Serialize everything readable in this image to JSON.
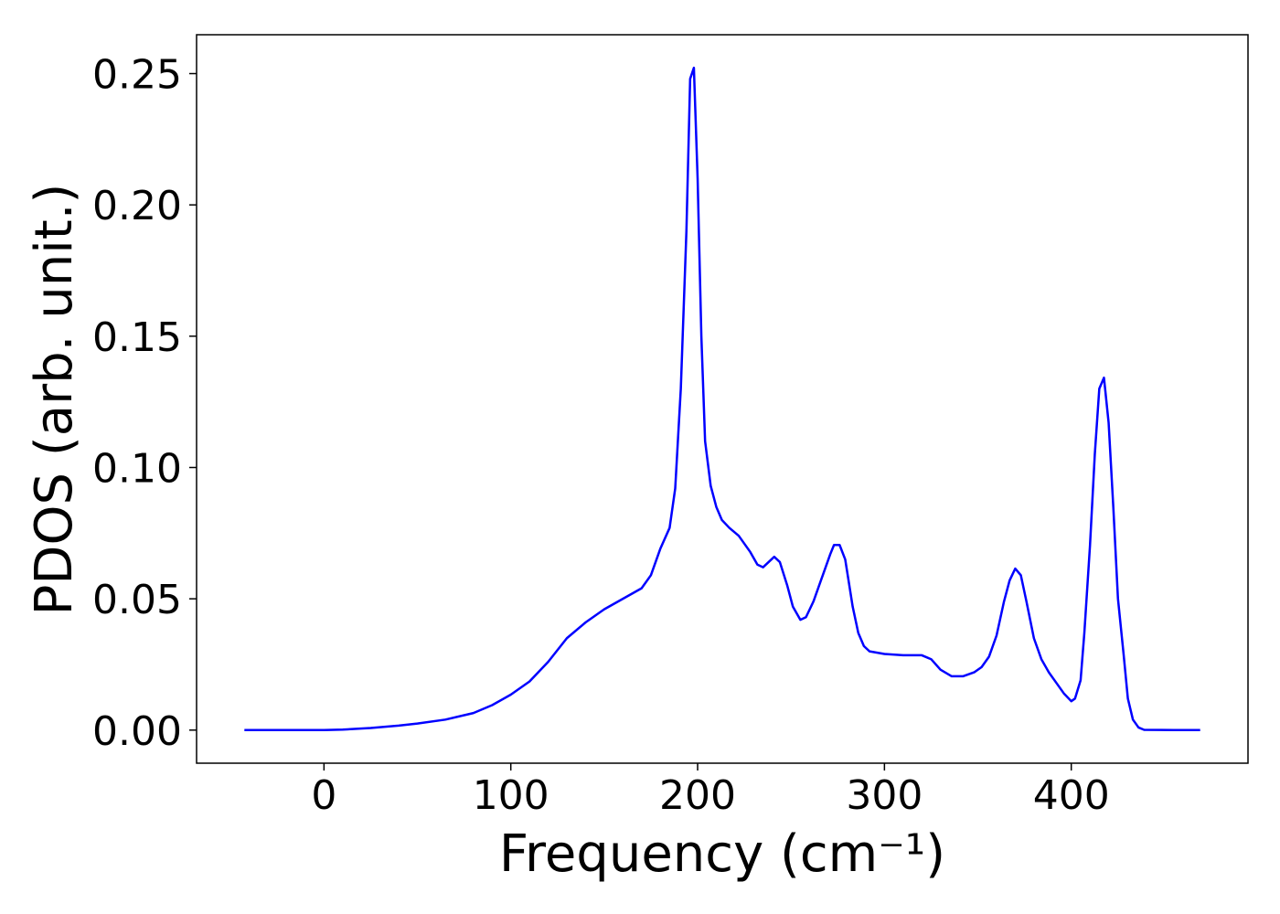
{
  "chart_data": {
    "type": "line",
    "x_label": "Frequency (cm⁻¹)",
    "y_label": "PDOS (arb. unit.)",
    "x": [
      -42.6,
      0,
      10,
      25,
      40,
      50,
      65,
      80,
      90,
      100,
      110,
      120,
      130,
      140,
      150,
      160,
      170,
      175,
      180,
      185,
      188,
      191,
      194,
      196,
      198,
      200,
      202,
      204,
      207,
      210,
      213,
      217,
      222,
      228,
      232,
      235,
      238,
      241,
      244,
      248,
      251,
      255,
      258,
      262,
      267,
      271,
      273,
      276,
      279,
      283,
      286,
      289,
      292,
      300,
      310,
      320,
      325,
      330,
      336,
      342,
      348,
      352,
      356,
      360,
      364,
      367,
      370,
      373,
      376,
      380,
      384,
      388,
      392,
      396,
      400,
      402,
      405,
      407,
      410,
      412.6,
      415,
      417.5,
      420,
      422.5,
      425,
      428,
      430.3,
      433,
      436,
      439,
      455,
      469
    ],
    "series": [
      {
        "name": "PDOS",
        "color": "#0000ff",
        "values": [
          0,
          0,
          0.0002,
          0.0008,
          0.0017,
          0.0025,
          0.004,
          0.0065,
          0.0095,
          0.0135,
          0.0185,
          0.026,
          0.035,
          0.041,
          0.046,
          0.05,
          0.054,
          0.059,
          0.069,
          0.077,
          0.092,
          0.13,
          0.19,
          0.248,
          0.2522,
          0.21,
          0.15,
          0.11,
          0.093,
          0.085,
          0.08,
          0.077,
          0.074,
          0.068,
          0.063,
          0.062,
          0.064,
          0.066,
          0.064,
          0.055,
          0.047,
          0.042,
          0.043,
          0.049,
          0.059,
          0.067,
          0.0705,
          0.0705,
          0.065,
          0.047,
          0.037,
          0.032,
          0.03,
          0.029,
          0.0285,
          0.0285,
          0.027,
          0.023,
          0.0205,
          0.0205,
          0.022,
          0.024,
          0.028,
          0.036,
          0.049,
          0.057,
          0.0615,
          0.059,
          0.049,
          0.035,
          0.027,
          0.022,
          0.018,
          0.014,
          0.011,
          0.012,
          0.019,
          0.037,
          0.07,
          0.105,
          0.13,
          0.1342,
          0.117,
          0.085,
          0.05,
          0.029,
          0.012,
          0.004,
          0.001,
          0.0001,
          0,
          0
        ]
      }
    ],
    "xlim": [
      -68.2,
      494.6
    ],
    "ylim": [
      -0.0126,
      0.2648
    ],
    "xticks": [
      0,
      100,
      200,
      300,
      400
    ],
    "yticks": [
      {
        "value": 0,
        "label": "0.00"
      },
      {
        "value": 0.05,
        "label": "0.05"
      },
      {
        "value": 0.1,
        "label": "0.10"
      },
      {
        "value": 0.15,
        "label": "0.15"
      },
      {
        "value": 0.2,
        "label": "0.20"
      },
      {
        "value": 0.25,
        "label": "0.25"
      }
    ]
  }
}
